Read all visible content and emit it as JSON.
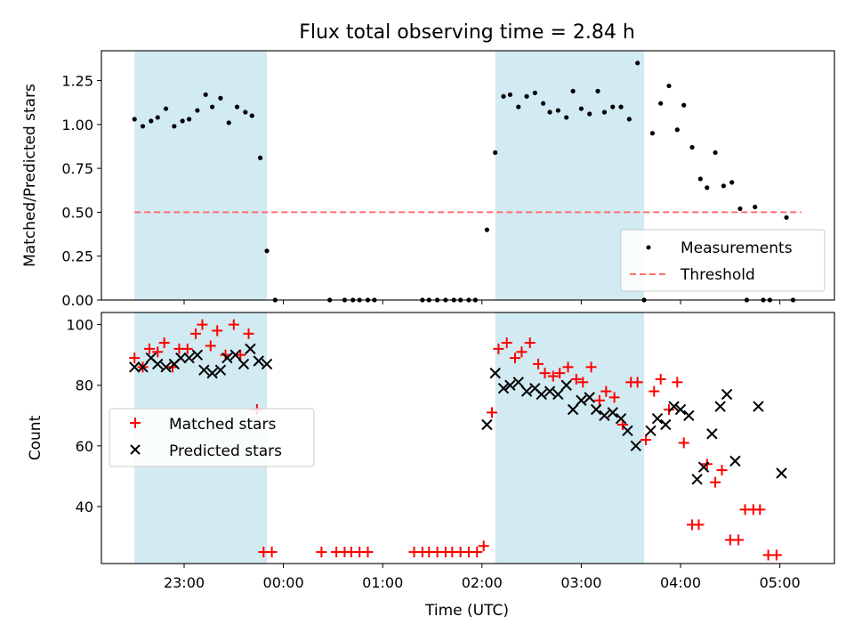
{
  "chart_data": {
    "title": "Flux total observing time = 2.84 h",
    "xlabel": "Time (UTC)",
    "x_range": [
      "2023-01-01T22:10",
      "2023-01-02T05:33"
    ],
    "x_ticks": [
      {
        "time": "2023-01-01T23:00",
        "label": "23:00"
      },
      {
        "time": "2023-01-02T00:00",
        "label": "00:00"
      },
      {
        "time": "2023-01-02T01:00",
        "label": "01:00"
      },
      {
        "time": "2023-01-02T02:00",
        "label": "02:00"
      },
      {
        "time": "2023-01-02T03:00",
        "label": "03:00"
      },
      {
        "time": "2023-01-02T04:00",
        "label": "04:00"
      },
      {
        "time": "2023-01-02T05:00",
        "label": "05:00"
      }
    ],
    "shaded_intervals": [
      [
        "2023-01-01T22:30",
        "2023-01-01T23:50"
      ],
      [
        "2023-01-02T02:08",
        "2023-01-02T03:38"
      ]
    ],
    "shade_color": "#add8e6",
    "panels": [
      {
        "type": "scatter",
        "ylabel": "Matched/Predicted stars",
        "ylim": [
          0,
          1.42
        ],
        "y_ticks": [
          0.0,
          0.25,
          0.5,
          0.75,
          1.0,
          1.25
        ],
        "y_tick_labels": [
          "0.00",
          "0.25",
          "0.50",
          "0.75",
          "1.00",
          "1.25"
        ],
        "legend_position": "lower right",
        "threshold": {
          "name": "Threshold",
          "value": 0.5,
          "x_start": "2023-01-01T22:30",
          "x_end": "2023-01-02T05:13",
          "color": "#ff7070"
        },
        "series": [
          {
            "name": "Measurements",
            "marker": "dot",
            "color": "#000000",
            "points": [
              [
                "2023-01-01T22:30",
                1.03
              ],
              [
                "2023-01-01T22:35",
                0.99
              ],
              [
                "2023-01-01T22:40",
                1.02
              ],
              [
                "2023-01-01T22:44",
                1.04
              ],
              [
                "2023-01-01T22:49",
                1.09
              ],
              [
                "2023-01-01T22:54",
                0.99
              ],
              [
                "2023-01-01T22:59",
                1.02
              ],
              [
                "2023-01-01T23:03",
                1.03
              ],
              [
                "2023-01-01T23:08",
                1.08
              ],
              [
                "2023-01-01T23:13",
                1.17
              ],
              [
                "2023-01-01T23:17",
                1.1
              ],
              [
                "2023-01-01T23:22",
                1.15
              ],
              [
                "2023-01-01T23:27",
                1.01
              ],
              [
                "2023-01-01T23:32",
                1.1
              ],
              [
                "2023-01-01T23:37",
                1.07
              ],
              [
                "2023-01-01T23:41",
                1.05
              ],
              [
                "2023-01-01T23:46",
                0.81
              ],
              [
                "2023-01-01T23:50",
                0.28
              ],
              [
                "2023-01-01T23:55",
                0.0
              ],
              [
                "2023-01-02T00:28",
                0.0
              ],
              [
                "2023-01-02T00:37",
                0.0
              ],
              [
                "2023-01-02T00:42",
                0.0
              ],
              [
                "2023-01-02T00:46",
                0.0
              ],
              [
                "2023-01-02T00:51",
                0.0
              ],
              [
                "2023-01-02T00:55",
                0.0
              ],
              [
                "2023-01-02T01:24",
                0.0
              ],
              [
                "2023-01-02T01:28",
                0.0
              ],
              [
                "2023-01-02T01:33",
                0.0
              ],
              [
                "2023-01-02T01:38",
                0.0
              ],
              [
                "2023-01-02T01:43",
                0.0
              ],
              [
                "2023-01-02T01:47",
                0.0
              ],
              [
                "2023-01-02T01:52",
                0.0
              ],
              [
                "2023-01-02T01:56",
                0.0
              ],
              [
                "2023-01-02T02:03",
                0.4
              ],
              [
                "2023-01-02T02:08",
                0.84
              ],
              [
                "2023-01-02T02:13",
                1.16
              ],
              [
                "2023-01-02T02:17",
                1.17
              ],
              [
                "2023-01-02T02:22",
                1.1
              ],
              [
                "2023-01-02T02:27",
                1.16
              ],
              [
                "2023-01-02T02:32",
                1.18
              ],
              [
                "2023-01-02T02:37",
                1.12
              ],
              [
                "2023-01-02T02:41",
                1.07
              ],
              [
                "2023-01-02T02:46",
                1.08
              ],
              [
                "2023-01-02T02:51",
                1.04
              ],
              [
                "2023-01-02T02:55",
                1.19
              ],
              [
                "2023-01-02T03:00",
                1.09
              ],
              [
                "2023-01-02T03:05",
                1.06
              ],
              [
                "2023-01-02T03:10",
                1.19
              ],
              [
                "2023-01-02T03:14",
                1.07
              ],
              [
                "2023-01-02T03:19",
                1.1
              ],
              [
                "2023-01-02T03:24",
                1.1
              ],
              [
                "2023-01-02T03:29",
                1.03
              ],
              [
                "2023-01-02T03:34",
                1.35
              ],
              [
                "2023-01-02T03:38",
                0.0
              ],
              [
                "2023-01-02T03:43",
                0.95
              ],
              [
                "2023-01-02T03:48",
                1.12
              ],
              [
                "2023-01-02T03:53",
                1.22
              ],
              [
                "2023-01-02T03:58",
                0.97
              ],
              [
                "2023-01-02T04:02",
                1.11
              ],
              [
                "2023-01-02T04:07",
                0.87
              ],
              [
                "2023-01-02T04:12",
                0.69
              ],
              [
                "2023-01-02T04:16",
                0.64
              ],
              [
                "2023-01-02T04:21",
                0.84
              ],
              [
                "2023-01-02T04:26",
                0.65
              ],
              [
                "2023-01-02T04:31",
                0.67
              ],
              [
                "2023-01-02T04:36",
                0.52
              ],
              [
                "2023-01-02T04:40",
                0.0
              ],
              [
                "2023-01-02T04:45",
                0.53
              ],
              [
                "2023-01-02T04:50",
                0.0
              ],
              [
                "2023-01-02T04:54",
                0.0
              ],
              [
                "2023-01-02T05:04",
                0.47
              ],
              [
                "2023-01-02T05:08",
                0.0
              ]
            ]
          }
        ]
      },
      {
        "type": "scatter",
        "ylabel": "Count",
        "ylim": [
          21.2,
          104
        ],
        "y_ticks": [
          40,
          60,
          80,
          100
        ],
        "y_tick_labels": [
          "40",
          "60",
          "80",
          "100"
        ],
        "legend_position": "center left",
        "series": [
          {
            "name": "Matched stars",
            "marker": "plus",
            "color": "#ff0000",
            "points": [
              [
                "2023-01-01T22:30",
                89
              ],
              [
                "2023-01-01T22:35",
                86
              ],
              [
                "2023-01-01T22:39",
                92
              ],
              [
                "2023-01-01T22:44",
                91
              ],
              [
                "2023-01-01T22:48",
                94
              ],
              [
                "2023-01-01T22:53",
                86
              ],
              [
                "2023-01-01T22:57",
                92
              ],
              [
                "2023-01-01T23:02",
                92
              ],
              [
                "2023-01-01T23:07",
                97
              ],
              [
                "2023-01-01T23:11",
                100
              ],
              [
                "2023-01-01T23:16",
                93
              ],
              [
                "2023-01-01T23:20",
                98
              ],
              [
                "2023-01-01T23:25",
                90
              ],
              [
                "2023-01-01T23:30",
                100
              ],
              [
                "2023-01-01T23:34",
                90
              ],
              [
                "2023-01-01T23:39",
                97
              ],
              [
                "2023-01-01T23:44",
                72
              ],
              [
                "2023-01-01T23:48",
                25
              ],
              [
                "2023-01-01T23:53",
                25
              ],
              [
                "2023-01-02T00:23",
                25
              ],
              [
                "2023-01-02T00:32",
                25
              ],
              [
                "2023-01-02T00:37",
                25
              ],
              [
                "2023-01-02T00:41",
                25
              ],
              [
                "2023-01-02T00:46",
                25
              ],
              [
                "2023-01-02T00:51",
                25
              ],
              [
                "2023-01-02T01:19",
                25
              ],
              [
                "2023-01-02T01:24",
                25
              ],
              [
                "2023-01-02T01:28",
                25
              ],
              [
                "2023-01-02T01:33",
                25
              ],
              [
                "2023-01-02T01:38",
                25
              ],
              [
                "2023-01-02T01:42",
                25
              ],
              [
                "2023-01-02T01:47",
                25
              ],
              [
                "2023-01-02T01:52",
                25
              ],
              [
                "2023-01-02T01:57",
                25
              ],
              [
                "2023-01-02T02:01",
                27
              ],
              [
                "2023-01-02T02:06",
                71
              ],
              [
                "2023-01-02T02:10",
                92
              ],
              [
                "2023-01-02T02:15",
                94
              ],
              [
                "2023-01-02T02:20",
                89
              ],
              [
                "2023-01-02T02:24",
                91
              ],
              [
                "2023-01-02T02:29",
                94
              ],
              [
                "2023-01-02T02:34",
                87
              ],
              [
                "2023-01-02T02:38",
                84
              ],
              [
                "2023-01-02T02:43",
                83
              ],
              [
                "2023-01-02T02:47",
                84
              ],
              [
                "2023-01-02T02:52",
                86
              ],
              [
                "2023-01-02T02:57",
                82
              ],
              [
                "2023-01-02T03:01",
                81
              ],
              [
                "2023-01-02T03:06",
                86
              ],
              [
                "2023-01-02T03:11",
                75
              ],
              [
                "2023-01-02T03:15",
                78
              ],
              [
                "2023-01-02T03:20",
                76
              ],
              [
                "2023-01-02T03:25",
                67
              ],
              [
                "2023-01-02T03:30",
                81
              ],
              [
                "2023-01-02T03:34",
                81
              ],
              [
                "2023-01-02T03:39",
                62
              ],
              [
                "2023-01-02T03:44",
                78
              ],
              [
                "2023-01-02T03:48",
                82
              ],
              [
                "2023-01-02T03:53",
                72
              ],
              [
                "2023-01-02T03:58",
                81
              ],
              [
                "2023-01-02T04:02",
                61
              ],
              [
                "2023-01-02T04:07",
                34
              ],
              [
                "2023-01-02T04:11",
                34
              ],
              [
                "2023-01-02T04:16",
                54
              ],
              [
                "2023-01-02T04:21",
                48
              ],
              [
                "2023-01-02T04:25",
                52
              ],
              [
                "2023-01-02T04:30",
                29
              ],
              [
                "2023-01-02T04:35",
                29
              ],
              [
                "2023-01-02T04:39",
                39
              ],
              [
                "2023-01-02T04:44",
                39
              ],
              [
                "2023-01-02T04:48",
                39
              ],
              [
                "2023-01-02T04:53",
                24
              ],
              [
                "2023-01-02T04:58",
                24
              ]
            ]
          },
          {
            "name": "Predicted stars",
            "marker": "x",
            "color": "#000000",
            "points": [
              [
                "2023-01-01T22:30",
                86
              ],
              [
                "2023-01-01T22:35",
                86
              ],
              [
                "2023-01-01T22:40",
                89
              ],
              [
                "2023-01-01T22:44",
                87
              ],
              [
                "2023-01-01T22:49",
                86
              ],
              [
                "2023-01-01T22:54",
                87
              ],
              [
                "2023-01-01T22:58",
                89
              ],
              [
                "2023-01-01T23:03",
                89
              ],
              [
                "2023-01-01T23:08",
                90
              ],
              [
                "2023-01-01T23:12",
                85
              ],
              [
                "2023-01-01T23:17",
                84
              ],
              [
                "2023-01-01T23:22",
                85
              ],
              [
                "2023-01-01T23:26",
                89
              ],
              [
                "2023-01-01T23:31",
                90
              ],
              [
                "2023-01-01T23:36",
                87
              ],
              [
                "2023-01-01T23:40",
                92
              ],
              [
                "2023-01-01T23:45",
                88
              ],
              [
                "2023-01-01T23:50",
                87
              ],
              [
                "2023-01-02T02:03",
                67
              ],
              [
                "2023-01-02T02:08",
                84
              ],
              [
                "2023-01-02T02:13",
                79
              ],
              [
                "2023-01-02T02:17",
                80
              ],
              [
                "2023-01-02T02:22",
                81
              ],
              [
                "2023-01-02T02:27",
                78
              ],
              [
                "2023-01-02T02:32",
                79
              ],
              [
                "2023-01-02T02:36",
                77
              ],
              [
                "2023-01-02T02:41",
                78
              ],
              [
                "2023-01-02T02:46",
                77
              ],
              [
                "2023-01-02T02:51",
                80
              ],
              [
                "2023-01-02T02:55",
                72
              ],
              [
                "2023-01-02T03:00",
                75
              ],
              [
                "2023-01-02T03:05",
                76
              ],
              [
                "2023-01-02T03:09",
                72
              ],
              [
                "2023-01-02T03:14",
                70
              ],
              [
                "2023-01-02T03:19",
                71
              ],
              [
                "2023-01-02T03:24",
                69
              ],
              [
                "2023-01-02T03:28",
                65
              ],
              [
                "2023-01-02T03:33",
                60
              ],
              [
                "2023-01-02T03:42",
                65
              ],
              [
                "2023-01-02T03:46",
                69
              ],
              [
                "2023-01-02T03:51",
                67
              ],
              [
                "2023-01-02T03:56",
                73
              ],
              [
                "2023-01-02T04:00",
                72
              ],
              [
                "2023-01-02T04:05",
                70
              ],
              [
                "2023-01-02T04:10",
                49
              ],
              [
                "2023-01-02T04:14",
                53
              ],
              [
                "2023-01-02T04:19",
                64
              ],
              [
                "2023-01-02T04:24",
                73
              ],
              [
                "2023-01-02T04:28",
                77
              ],
              [
                "2023-01-02T04:33",
                55
              ],
              [
                "2023-01-02T04:47",
                73
              ],
              [
                "2023-01-02T05:01",
                51
              ]
            ]
          }
        ]
      }
    ]
  }
}
